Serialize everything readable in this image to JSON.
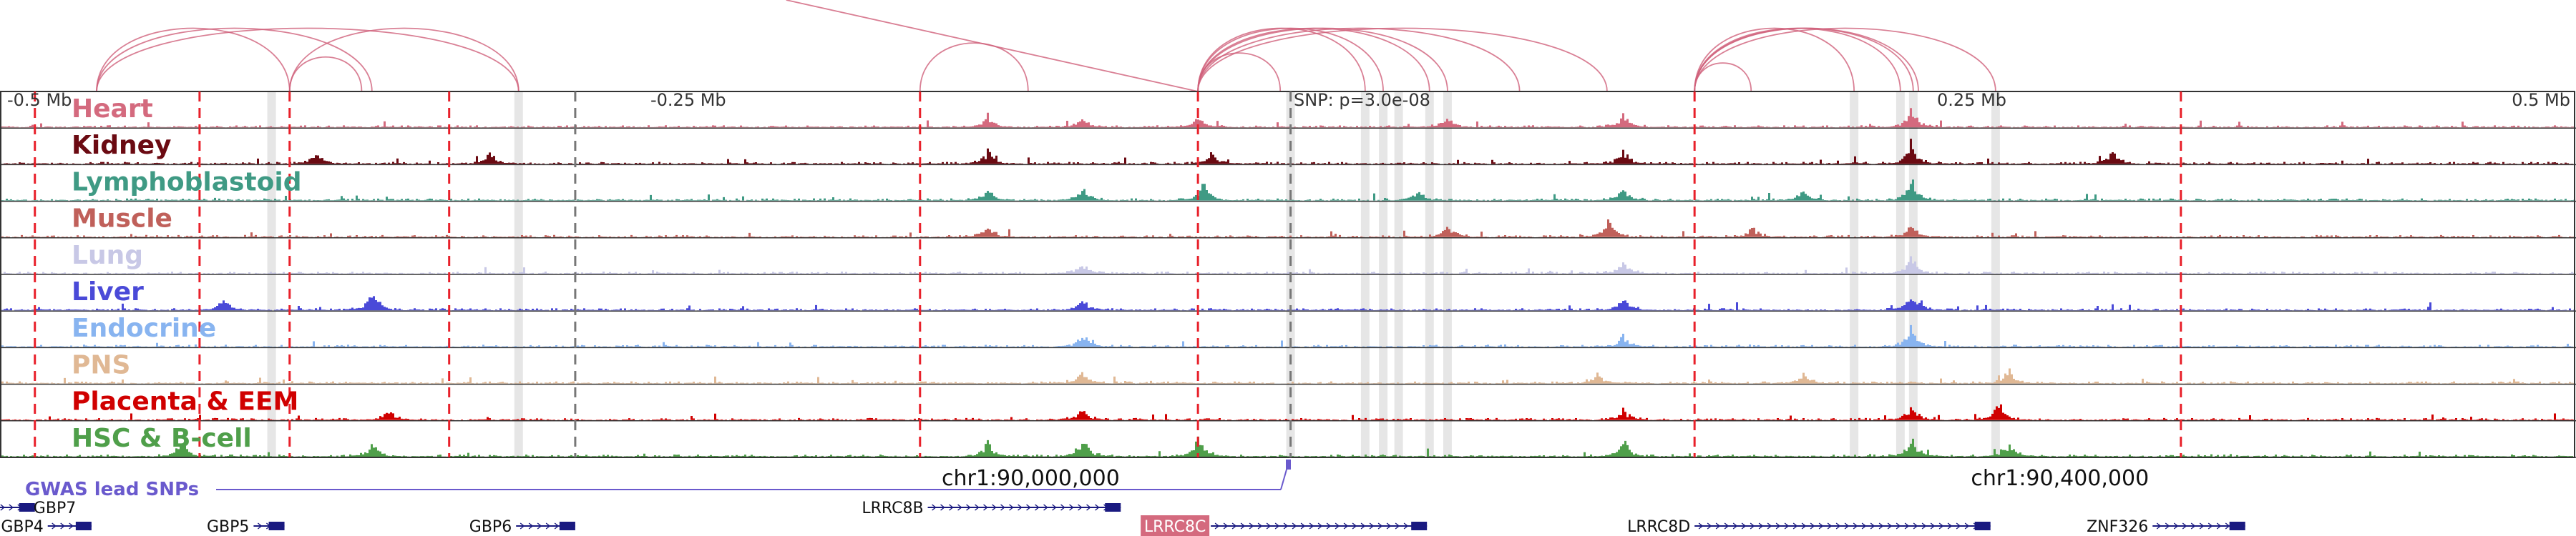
{
  "chart_data": {
    "type": "area",
    "x_unit": "Mb",
    "x_range": [
      -0.5,
      0.5
    ],
    "axis_labels": [
      "-0.5 Mb",
      "-0.25 Mb",
      "0.25 Mb",
      "0.5 Mb"
    ],
    "axis_label_positions": [
      -0.5,
      -0.25,
      0.25,
      0.5
    ],
    "snp_label": "SNP: p=3.0e-08",
    "snp_position": 0.0,
    "tracks": [
      {
        "name": "Heart",
        "color": "#d46a7e",
        "peaks": [
          [
            -0.117,
            0.55
          ],
          [
            -0.08,
            0.4
          ],
          [
            -0.035,
            0.5
          ],
          [
            0.062,
            0.55
          ],
          [
            0.13,
            0.6
          ],
          [
            0.242,
            1.0
          ]
        ]
      },
      {
        "name": "Kidney",
        "color": "#6b0a12",
        "peaks": [
          [
            -0.378,
            0.5
          ],
          [
            -0.31,
            0.55
          ],
          [
            -0.117,
            0.6
          ],
          [
            -0.03,
            0.5
          ],
          [
            0.13,
            0.7
          ],
          [
            0.242,
            1.0
          ],
          [
            0.32,
            0.6
          ]
        ]
      },
      {
        "name": "Lymphoblastoid",
        "color": "#3f9a84",
        "peaks": [
          [
            -0.117,
            0.5
          ],
          [
            -0.08,
            0.7
          ],
          [
            -0.033,
            0.8
          ],
          [
            0.05,
            0.5
          ],
          [
            0.13,
            0.6
          ],
          [
            0.2,
            0.6
          ],
          [
            0.242,
            1.0
          ]
        ]
      },
      {
        "name": "Muscle",
        "color": "#c0605a",
        "peaks": [
          [
            -0.117,
            0.5
          ],
          [
            0.062,
            0.55
          ],
          [
            0.124,
            1.0
          ],
          [
            0.18,
            0.45
          ],
          [
            0.242,
            0.6
          ]
        ]
      },
      {
        "name": "Lung",
        "color": "#c8c8e6",
        "peaks": [
          [
            -0.08,
            0.5
          ],
          [
            0.13,
            0.6
          ],
          [
            0.242,
            0.8
          ]
        ]
      },
      {
        "name": "Liver",
        "color": "#4a4ad8",
        "peaks": [
          [
            -0.414,
            0.5
          ],
          [
            -0.356,
            1.0
          ],
          [
            -0.08,
            0.5
          ],
          [
            0.13,
            0.6
          ],
          [
            0.242,
            1.0
          ]
        ]
      },
      {
        "name": "Endocrine",
        "color": "#88b4f0",
        "peaks": [
          [
            -0.08,
            0.6
          ],
          [
            0.13,
            0.5
          ],
          [
            0.242,
            1.0
          ]
        ]
      },
      {
        "name": "PNS",
        "color": "#e0b894",
        "peaks": [
          [
            -0.08,
            0.6
          ],
          [
            0.12,
            0.5
          ],
          [
            0.2,
            0.5
          ],
          [
            0.28,
            0.6
          ]
        ]
      },
      {
        "name": "Placenta & EEM",
        "color": "#d00000",
        "peaks": [
          [
            -0.35,
            0.5
          ],
          [
            -0.08,
            0.6
          ],
          [
            0.13,
            0.5
          ],
          [
            0.242,
            0.7
          ],
          [
            0.276,
            0.9
          ]
        ]
      },
      {
        "name": "HSC & B-cell",
        "color": "#4f9f4a",
        "peaks": [
          [
            -0.43,
            0.7
          ],
          [
            -0.356,
            0.6
          ],
          [
            -0.117,
            0.7
          ],
          [
            -0.08,
            0.9
          ],
          [
            -0.035,
            1.0
          ],
          [
            0.13,
            0.8
          ],
          [
            0.242,
            1.0
          ],
          [
            0.28,
            0.7
          ]
        ]
      }
    ],
    "red_dashed_lines": [
      -0.487,
      -0.423,
      -0.388,
      -0.326,
      -0.143,
      -0.035,
      0.158,
      0.347
    ],
    "gray_dashed_lines": [
      -0.277,
      0.001
    ],
    "gray_highlight_bands": [
      -0.395,
      -0.299,
      0.001,
      0.03,
      0.037,
      0.043,
      0.055,
      0.062,
      0.22,
      0.238,
      0.243,
      0.275
    ],
    "links": [
      {
        "from": -0.463,
        "to": -0.388
      },
      {
        "from": -0.463,
        "to": -0.356
      },
      {
        "from": -0.463,
        "to": -0.299
      },
      {
        "from": -0.388,
        "to": -0.36
      },
      {
        "from": -0.388,
        "to": -0.299
      },
      {
        "from": -0.143,
        "to": -0.101
      },
      {
        "from": -0.035,
        "to": -0.003
      },
      {
        "from": -0.035,
        "to": 0.03
      },
      {
        "from": -0.035,
        "to": 0.037
      },
      {
        "from": -0.035,
        "to": 0.055
      },
      {
        "from": -0.035,
        "to": 0.062
      },
      {
        "from": -0.035,
        "to": 0.09
      },
      {
        "from": -0.035,
        "to": 0.124
      },
      {
        "from": 0.158,
        "to": 0.18
      },
      {
        "from": 0.158,
        "to": 0.22
      },
      {
        "from": 0.158,
        "to": 0.238
      },
      {
        "from": 0.158,
        "to": 0.243
      },
      {
        "from": 0.158,
        "to": 0.245
      },
      {
        "from": 0.158,
        "to": 0.275
      }
    ],
    "gwas_label": "GWAS lead SNPs",
    "coordinate_labels": [
      {
        "text": "chr1:90,000,000",
        "x": -0.1
      },
      {
        "text": "chr1:90,400,000",
        "x": 0.3
      }
    ],
    "genes": [
      {
        "name": "GBP7",
        "start": -0.502,
        "end": -0.487,
        "row": 0
      },
      {
        "name": "GBP4",
        "start": -0.482,
        "end": -0.465,
        "row": 1
      },
      {
        "name": "GBP5",
        "start": -0.402,
        "end": -0.39,
        "row": 1
      },
      {
        "name": "GBP6",
        "start": -0.3,
        "end": -0.277,
        "row": 1
      },
      {
        "name": "LRRC8B",
        "start": -0.14,
        "end": -0.065,
        "row": 0
      },
      {
        "name": "LRRC8C",
        "start": -0.03,
        "end": 0.054,
        "row": 1,
        "highlight": true
      },
      {
        "name": "LRRC8D",
        "start": 0.158,
        "end": 0.273,
        "row": 1
      },
      {
        "name": "ZNF326",
        "start": 0.336,
        "end": 0.372,
        "row": 1
      }
    ]
  }
}
